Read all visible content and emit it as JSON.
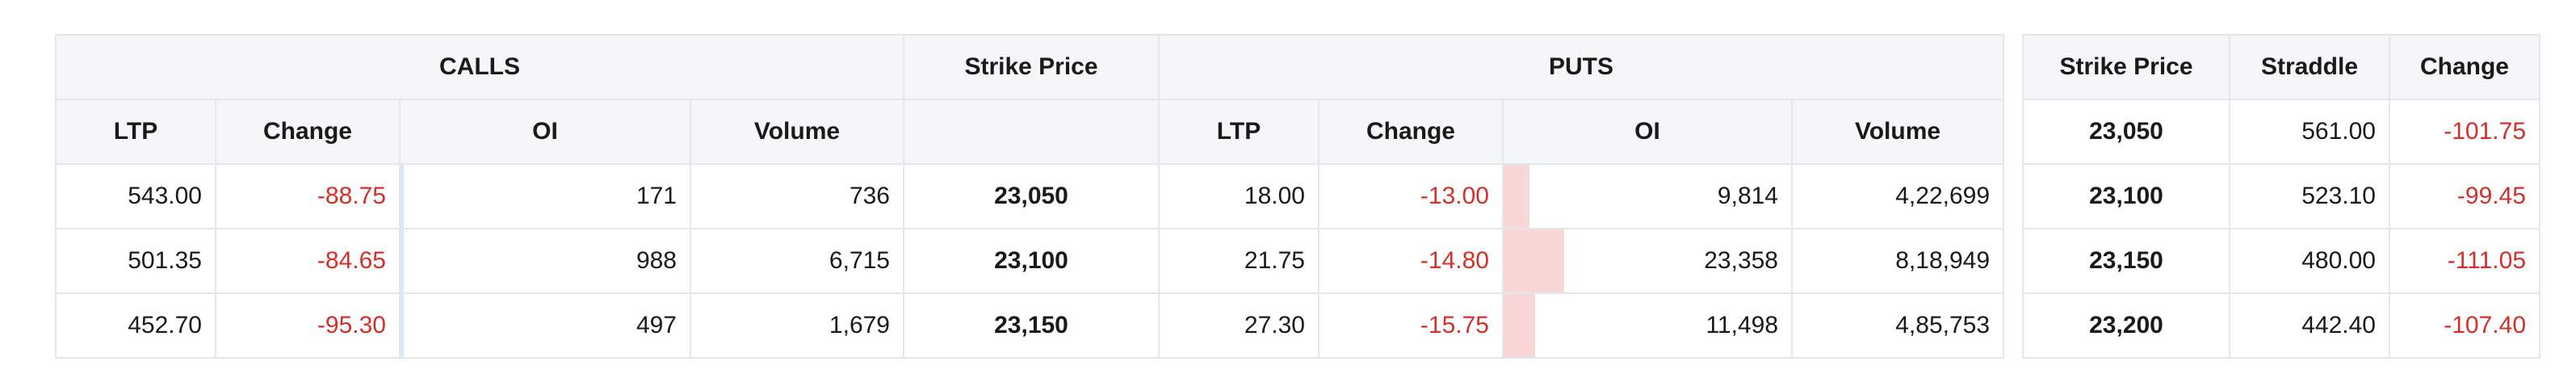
{
  "chain": {
    "group_headers": {
      "calls": "CALLS",
      "strike": "Strike Price",
      "puts": "PUTS"
    },
    "sub_headers": {
      "calls": [
        "LTP",
        "Change",
        "OI",
        "Volume"
      ],
      "strike": "",
      "puts": [
        "LTP",
        "Change",
        "OI",
        "Volume"
      ]
    },
    "rows": [
      {
        "call_ltp": "543.00",
        "call_change": "-88.75",
        "call_oi": "171",
        "call_volume": "736",
        "strike": "23,050",
        "put_ltp": "18.00",
        "put_change": "-13.00",
        "put_oi": "9,814",
        "put_volume": "4,22,699",
        "put_oi_share": 0.09
      },
      {
        "call_ltp": "501.35",
        "call_change": "-84.65",
        "call_oi": "988",
        "call_volume": "6,715",
        "strike": "23,100",
        "put_ltp": "21.75",
        "put_change": "-14.80",
        "put_oi": "23,358",
        "put_volume": "8,18,949",
        "put_oi_share": 0.21
      },
      {
        "call_ltp": "452.70",
        "call_change": "-95.30",
        "call_oi": "497",
        "call_volume": "1,679",
        "strike": "23,150",
        "put_ltp": "27.30",
        "put_change": "-15.75",
        "put_oi": "11,498",
        "put_volume": "4,85,753",
        "put_oi_share": 0.11
      }
    ]
  },
  "straddle": {
    "headers": [
      "Strike Price",
      "Straddle",
      "Change"
    ],
    "rows": [
      {
        "strike": "23,050",
        "straddle": "561.00",
        "change": "-101.75"
      },
      {
        "strike": "23,100",
        "straddle": "523.10",
        "change": "-99.45"
      },
      {
        "strike": "23,150",
        "straddle": "480.00",
        "change": "-111.05"
      },
      {
        "strike": "23,200",
        "straddle": "442.40",
        "change": "-107.40"
      }
    ]
  },
  "colors": {
    "negative": "#d0312d",
    "put_oi_bar": "#f8d7d6",
    "header_bg": "#f5f6f8",
    "border": "#e3e6ea"
  }
}
